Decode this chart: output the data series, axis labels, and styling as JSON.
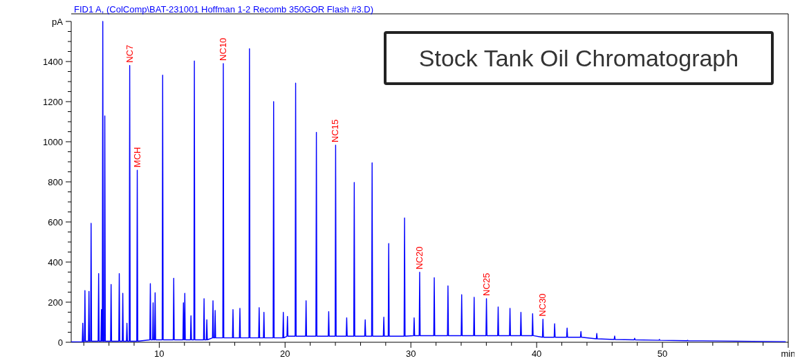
{
  "chart_data": {
    "type": "line",
    "title": "Stock Tank Oil Chromatograph",
    "subtitle": "FID1 A,  (ColComp\\BAT-231001 Hoffman 1-2 Recomb 350GOR Flash #3.D)",
    "xlim": [
      3,
      60
    ],
    "ylim": [
      0,
      1600
    ],
    "xticks": [
      {
        "value": 4,
        "label": null
      },
      {
        "value": 6,
        "label": null
      },
      {
        "value": 8,
        "label": null
      },
      10,
      {
        "value": 12,
        "label": null
      },
      {
        "value": 14,
        "label": null
      },
      {
        "value": 16,
        "label": null
      },
      {
        "value": 18,
        "label": null
      },
      20,
      {
        "value": 22,
        "label": null
      },
      {
        "value": 24,
        "label": null
      },
      {
        "value": 26,
        "label": null
      },
      {
        "value": 28,
        "label": null
      },
      30,
      {
        "value": 32,
        "label": null
      },
      {
        "value": 34,
        "label": null
      },
      {
        "value": 36,
        "label": null
      },
      {
        "value": 38,
        "label": null
      },
      40,
      {
        "value": 42,
        "label": null
      },
      {
        "value": 44,
        "label": null
      },
      {
        "value": 46,
        "label": null
      },
      {
        "value": 48,
        "label": null
      },
      50,
      {
        "value": 52,
        "label": null
      },
      {
        "value": 54,
        "label": null
      },
      {
        "value": 56,
        "label": null
      },
      {
        "value": 58,
        "label": null
      },
      {
        "value": 60,
        "label": "min"
      }
    ],
    "yticks": [
      0,
      {
        "value": 50,
        "label": null
      },
      {
        "value": 100,
        "label": null
      },
      {
        "value": 150,
        "label": null
      },
      200,
      {
        "value": 250,
        "label": null
      },
      {
        "value": 300,
        "label": null
      },
      {
        "value": 350,
        "label": null
      },
      400,
      {
        "value": 450,
        "label": null
      },
      {
        "value": 500,
        "label": null
      },
      {
        "value": 550,
        "label": null
      },
      600,
      {
        "value": 650,
        "label": null
      },
      {
        "value": 700,
        "label": null
      },
      {
        "value": 750,
        "label": null
      },
      800,
      {
        "value": 850,
        "label": null
      },
      {
        "value": 900,
        "label": null
      },
      {
        "value": 950,
        "label": null
      },
      1000,
      {
        "value": 1050,
        "label": null
      },
      {
        "value": 1100,
        "label": null
      },
      {
        "value": 1150,
        "label": null
      },
      1200,
      {
        "value": 1250,
        "label": null
      },
      {
        "value": 1300,
        "label": null
      },
      {
        "value": 1350,
        "label": null
      },
      1400,
      {
        "value": 1450,
        "label": null
      },
      {
        "value": 1500,
        "label": null
      },
      {
        "value": 1550,
        "label": null
      },
      {
        "value": 1600,
        "label": "pA"
      }
    ],
    "grid": false,
    "marker": "none",
    "line_style": "solid",
    "series": [
      {
        "color": "#0000ff",
        "x": [
          3.0,
          3.88,
          3.92,
          3.96,
          4.05,
          4.09,
          4.13,
          4.37,
          4.41,
          4.45,
          4.54,
          4.58,
          4.62,
          5.14,
          5.18,
          5.22,
          5.36,
          5.4,
          5.44,
          5.47,
          5.51,
          5.55,
          5.63,
          5.67,
          5.71,
          6.13,
          6.17,
          6.21,
          6.78,
          6.82,
          6.86,
          7.06,
          7.1,
          7.14,
          7.39,
          7.43,
          7.47,
          7.61,
          7.65,
          7.69,
          8.21,
          8.25,
          8.29,
          9.25,
          9.29,
          9.33,
          9.47,
          9.51,
          9.55,
          9.63,
          9.67,
          9.71,
          10.23,
          10.27,
          10.31,
          11.11,
          11.15,
          11.19,
          11.88,
          11.92,
          11.96,
          11.99,
          12.03,
          12.07,
          12.48,
          12.52,
          12.56,
          12.75,
          12.79,
          12.83,
          13.52,
          13.56,
          13.6,
          13.74,
          13.78,
          13.82,
          14.23,
          14.27,
          14.31,
          14.4,
          14.44,
          14.48,
          15.05,
          15.09,
          15.13,
          15.82,
          15.86,
          15.9,
          16.37,
          16.41,
          16.45,
          17.13,
          17.17,
          17.21,
          17.9,
          17.94,
          17.98,
          18.28,
          18.32,
          18.36,
          19.05,
          19.09,
          19.13,
          19.82,
          19.86,
          19.9,
          20.15,
          20.19,
          20.23,
          20.8,
          20.84,
          20.88,
          21.63,
          21.67,
          21.71,
          22.45,
          22.49,
          22.53,
          23.43,
          23.47,
          23.51,
          23.98,
          24.02,
          24.06,
          24.86,
          24.9,
          24.94,
          25.46,
          25.5,
          25.54,
          26.33,
          26.37,
          26.41,
          26.88,
          26.92,
          26.96,
          27.81,
          27.85,
          27.89,
          28.2,
          28.24,
          28.28,
          29.46,
          29.5,
          29.54,
          30.22,
          30.26,
          30.3,
          30.66,
          30.7,
          30.74,
          31.82,
          31.86,
          31.9,
          32.91,
          32.95,
          32.99,
          34.0,
          34.04,
          34.08,
          34.99,
          35.03,
          35.07,
          35.97,
          36.01,
          36.05,
          36.9,
          36.94,
          36.98,
          37.84,
          37.88,
          37.92,
          38.71,
          38.75,
          38.79,
          39.64,
          39.68,
          39.72,
          40.46,
          40.5,
          40.54,
          41.39,
          41.43,
          41.47,
          42.38,
          42.42,
          42.46,
          43.48,
          43.52,
          43.56,
          44.74,
          44.78,
          44.82,
          46.16,
          46.2,
          46.24,
          47.75,
          47.79,
          47.83,
          49.72,
          49.76,
          49.8,
          51.96,
          52.0,
          52.04,
          59.8
        ],
        "values": [
          2,
          3,
          95,
          3,
          5,
          258,
          5,
          5,
          254,
          5,
          5,
          593,
          5,
          5,
          342,
          5,
          5,
          163,
          5,
          5,
          1600,
          5,
          5,
          1129,
          5,
          5,
          288,
          5,
          5,
          342,
          5,
          5,
          244,
          5,
          5,
          95,
          5,
          5,
          1380,
          5,
          5,
          858,
          5,
          12,
          292,
          12,
          12,
          197,
          12,
          12,
          247,
          12,
          12,
          1332,
          12,
          12,
          319,
          12,
          12,
          197,
          12,
          12,
          244,
          12,
          12,
          132,
          12,
          12,
          1403,
          12,
          12,
          217,
          12,
          12,
          112,
          12,
          22,
          207,
          22,
          22,
          159,
          22,
          22,
          1390,
          22,
          22,
          163,
          22,
          22,
          169,
          22,
          22,
          1464,
          22,
          22,
          173,
          22,
          22,
          149,
          22,
          22,
          1200,
          22,
          22,
          149,
          22,
          30,
          129,
          30,
          30,
          1292,
          30,
          30,
          207,
          30,
          30,
          1047,
          30,
          30,
          153,
          30,
          30,
          983,
          30,
          30,
          122,
          30,
          30,
          797,
          30,
          30,
          112,
          30,
          30,
          895,
          30,
          30,
          125,
          30,
          30,
          492,
          30,
          30,
          620,
          30,
          33,
          122,
          33,
          33,
          349,
          33,
          33,
          322,
          33,
          33,
          281,
          33,
          33,
          237,
          33,
          33,
          224,
          33,
          33,
          217,
          33,
          33,
          176,
          33,
          33,
          169,
          33,
          33,
          149,
          33,
          33,
          142,
          33,
          25,
          115,
          25,
          25,
          92,
          25,
          25,
          71,
          25,
          25,
          54,
          25,
          17,
          44,
          17,
          14,
          31,
          14,
          12,
          20,
          12,
          10,
          14,
          10,
          8,
          10,
          8,
          3
        ]
      }
    ],
    "annotations": [
      {
        "text": "NC7",
        "x": 7.65,
        "y": 1380
      },
      {
        "text": "MCH",
        "x": 8.25,
        "y": 858
      },
      {
        "text": "NC10",
        "x": 15.09,
        "y": 1390
      },
      {
        "text": "NC15",
        "x": 24.02,
        "y": 983
      },
      {
        "text": "NC20",
        "x": 30.7,
        "y": 349
      },
      {
        "text": "NC25",
        "x": 36.01,
        "y": 217
      },
      {
        "text": "NC30",
        "x": 40.5,
        "y": 115
      }
    ]
  }
}
